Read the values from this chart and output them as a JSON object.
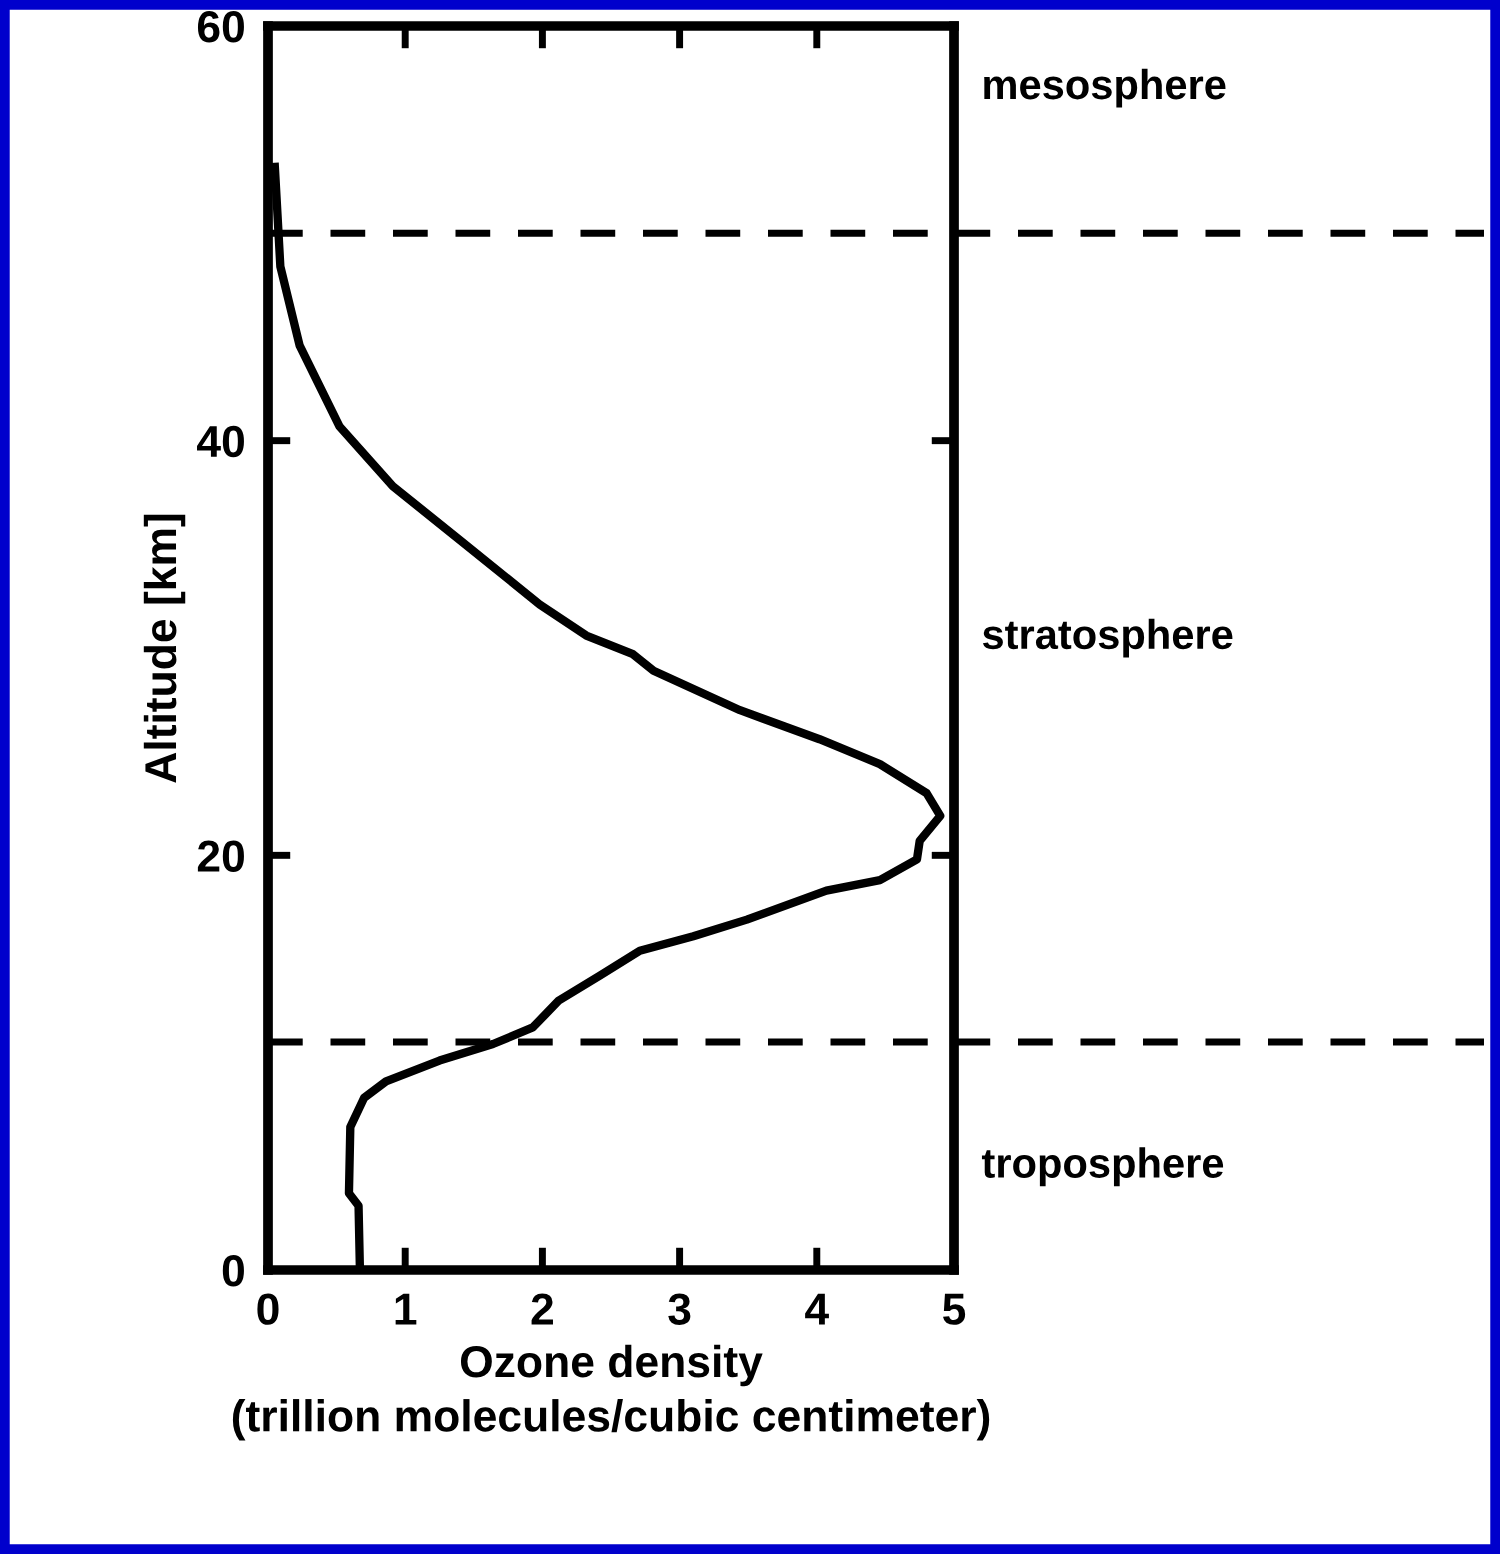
{
  "chart_data": {
    "type": "line",
    "xlabel": "Ozone density\n(trillion molecules/cubic centimeter)",
    "ylabel": "Altitude [km]",
    "xlim": [
      0,
      5
    ],
    "ylim": [
      0,
      60
    ],
    "xticks": [
      0,
      1,
      2,
      3,
      4,
      5
    ],
    "yticks": [
      0,
      20,
      40,
      60
    ],
    "grid": false,
    "legend": false,
    "marker": "none",
    "line_style": "solid",
    "series": [
      {
        "color": "#000000",
        "x": [
          0.05,
          0.09,
          0.23,
          0.52,
          0.91,
          1.4,
          1.98,
          2.32,
          2.66,
          2.81,
          3.44,
          4.02,
          4.46,
          4.8,
          4.9,
          4.75,
          4.73,
          4.46,
          4.07,
          3.49,
          3.1,
          2.71,
          2.42,
          2.12,
          1.93,
          1.64,
          1.25,
          0.86,
          0.7,
          0.6,
          0.59,
          0.66,
          0.67
        ],
        "values": [
          53.2,
          48.4,
          44.6,
          40.7,
          37.8,
          35.2,
          32.1,
          30.6,
          29.7,
          28.9,
          27.0,
          25.6,
          24.4,
          23.0,
          21.9,
          20.7,
          19.8,
          18.8,
          18.3,
          16.9,
          16.1,
          15.4,
          14.2,
          13.0,
          11.7,
          10.9,
          10.1,
          9.1,
          8.3,
          6.9,
          3.7,
          3.1,
          0
        ]
      }
    ],
    "ref_lines": [
      {
        "axis": "y",
        "value": 50,
        "color": "#000000",
        "line_style": "dashed"
      },
      {
        "axis": "y",
        "value": 11,
        "color": "#000000",
        "line_style": "dashed"
      }
    ],
    "annotations": [
      "mesosphere",
      "stratosphere",
      "troposphere"
    ]
  }
}
